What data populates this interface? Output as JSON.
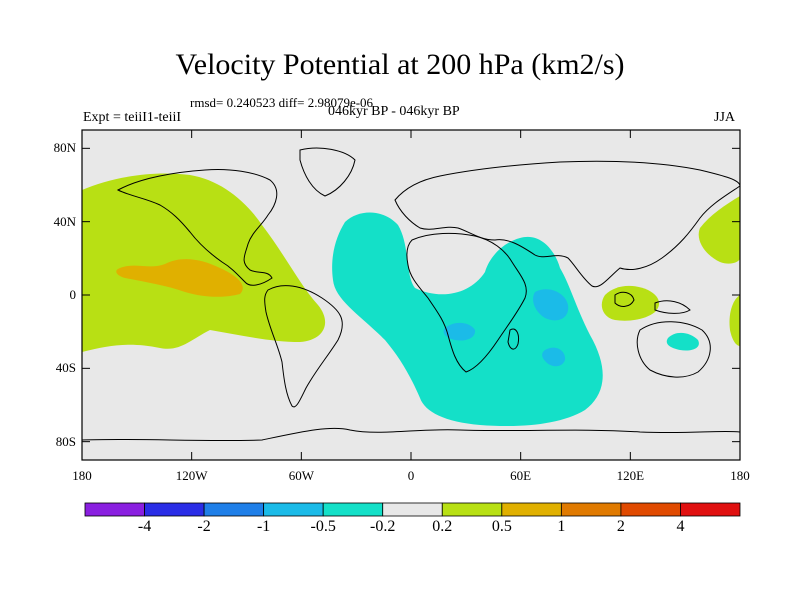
{
  "title": "Velocity Potential at 200 hPa (km2/s)",
  "stats": "rmsd= 0.240523 diff= 2.98079e-06",
  "experiment": "Expt = teiiI1-teiiI",
  "period": "046kyr BP - 046kyr BP",
  "season": "JJA",
  "map": {
    "projection": "cylindrical equidistant",
    "lon_range": [
      -180,
      180
    ],
    "lat_range": [
      -90,
      90
    ],
    "background_color": "#e8e8e8",
    "y_ticks": [
      "80N",
      "40N",
      "0",
      "40S",
      "80S"
    ],
    "y_tick_values": [
      80,
      40,
      0,
      -40,
      -80
    ],
    "x_ticks": [
      "180",
      "120W",
      "60W",
      "0",
      "60E",
      "120E",
      "180"
    ],
    "x_tick_values": [
      -180,
      -120,
      -60,
      0,
      60,
      120,
      180
    ]
  },
  "colorbar": {
    "labels": [
      "-4",
      "-2",
      "-1",
      "-0.5",
      "-0.2",
      "0.2",
      "0.5",
      "1",
      "2",
      "4"
    ],
    "colors": [
      "#8a1fe0",
      "#2a2de6",
      "#1f7fe8",
      "#1bbbe8",
      "#14e0c8",
      "#e8e8e8",
      "#b8e014",
      "#e0b000",
      "#e07a00",
      "#e04a00",
      "#e01010"
    ]
  },
  "regions": [
    {
      "name": "east-pacific-positive",
      "level": "0.2 to 0.5",
      "color": "#b8e014"
    },
    {
      "name": "east-pacific-core",
      "level": "0.5 to 1",
      "color": "#e0b000"
    },
    {
      "name": "atlantic-indian-negative",
      "level": "-0.5 to -0.2",
      "color": "#14e0c8"
    },
    {
      "name": "indian-ocean-cores",
      "level": "-1 to -0.5",
      "color": "#1bbbe8"
    },
    {
      "name": "maritime-continent-positive",
      "level": "0.2 to 0.5",
      "color": "#b8e014"
    },
    {
      "name": "west-pacific-positive",
      "level": "0.2 to 0.5",
      "color": "#b8e014"
    }
  ]
}
